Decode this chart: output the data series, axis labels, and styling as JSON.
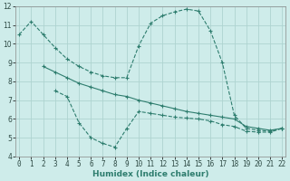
{
  "line1_x": [
    0,
    1,
    2,
    3,
    4,
    5,
    6,
    7,
    8,
    9,
    10,
    11,
    12,
    13,
    14,
    15,
    16,
    17,
    18,
    19,
    20,
    21,
    22
  ],
  "line1_y": [
    10.5,
    11.2,
    10.5,
    9.8,
    9.2,
    8.8,
    8.5,
    8.3,
    8.2,
    8.2,
    9.9,
    11.1,
    11.5,
    11.7,
    11.85,
    11.75,
    10.7,
    9.0,
    6.2,
    5.5,
    5.4,
    5.35,
    5.5
  ],
  "line2_x": [
    2,
    3,
    4,
    5,
    6,
    7,
    8,
    9,
    10,
    11,
    12,
    13,
    14,
    15,
    16,
    17,
    18,
    19,
    20,
    21,
    22
  ],
  "line2_y": [
    8.8,
    8.5,
    8.2,
    7.9,
    7.7,
    7.5,
    7.3,
    7.2,
    7.0,
    6.85,
    6.7,
    6.55,
    6.4,
    6.3,
    6.2,
    6.1,
    6.0,
    5.6,
    5.5,
    5.4,
    5.5
  ],
  "line3_x": [
    3,
    4,
    5,
    6,
    7,
    8,
    9,
    10,
    11,
    12,
    13,
    14,
    15,
    16,
    17,
    18,
    19,
    20,
    21,
    22
  ],
  "line3_y": [
    7.5,
    7.2,
    5.8,
    5.0,
    4.7,
    4.5,
    5.5,
    6.4,
    6.3,
    6.2,
    6.1,
    6.05,
    6.0,
    5.9,
    5.7,
    5.6,
    5.35,
    5.3,
    5.3,
    5.5
  ],
  "line_color": "#2e7d6e",
  "bg_color": "#ceecea",
  "grid_color": "#aed4d0",
  "xlabel": "Humidex (Indice chaleur)",
  "xlim": [
    -0.3,
    22.3
  ],
  "ylim": [
    4,
    12
  ],
  "yticks": [
    4,
    5,
    6,
    7,
    8,
    9,
    10,
    11,
    12
  ],
  "xticks": [
    0,
    1,
    2,
    3,
    4,
    5,
    6,
    7,
    8,
    9,
    10,
    11,
    12,
    13,
    14,
    15,
    16,
    17,
    18,
    19,
    20,
    21,
    22
  ],
  "marker": "+",
  "markersize": 3,
  "linewidth": 0.8,
  "tick_fontsize": 5.5,
  "xlabel_fontsize": 6.5
}
